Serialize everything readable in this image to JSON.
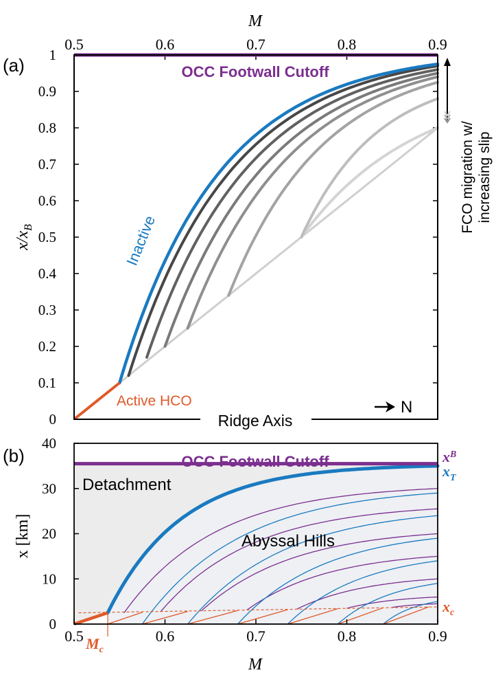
{
  "colors": {
    "purple": "#7b2f8f",
    "blue": "#1a7ac0",
    "orange": "#e05a2a",
    "frame": "#000000",
    "detachment_fill": "#ececec",
    "hills_fill": "#eef0f4"
  },
  "panel_labels": {
    "a": "(a)",
    "b": "(b)"
  },
  "chart_data": [
    {
      "type": "line",
      "panel": "a",
      "xlabel": "M",
      "ylabel": "x/x_B",
      "ylabel_main": "x/x",
      "ylabel_sub": "B",
      "xlim": [
        0.5,
        0.9
      ],
      "ylim": [
        0,
        1
      ],
      "xticks": [
        "0.5",
        "0.6",
        "0.7",
        "0.8",
        "0.9"
      ],
      "yticks": [
        "0",
        "0.1",
        "0.2",
        "0.3",
        "0.4",
        "0.5",
        "0.6",
        "0.7",
        "0.8",
        "0.9",
        "1"
      ],
      "grid": false,
      "x_axis_position": "top",
      "annotations": {
        "footwall": "OCC Footwall Cutoff",
        "inactive": "Inactive",
        "active": "Active HCO",
        "ridge": "Ridge Axis",
        "north": "N",
        "fco_line1": "FCO migration w/",
        "fco_line2": "increasing slip"
      },
      "footwall_cutoff": {
        "x": [
          0.5,
          0.9
        ],
        "y": [
          1,
          1
        ]
      },
      "active_hco": {
        "x": [
          0.5,
          0.55
        ],
        "y": [
          0.0,
          0.1
        ]
      },
      "ridge_diagonal": {
        "x": [
          0.55,
          0.9
        ],
        "y": [
          0.1,
          0.8
        ]
      },
      "curves": [
        {
          "start": [
            0.55,
            0.1
          ],
          "end": [
            0.9,
            0.975
          ],
          "k": 3.2,
          "style": "inactive"
        },
        {
          "start": [
            0.56,
            0.12
          ],
          "end": [
            0.9,
            0.97
          ],
          "k": 3.0,
          "gray": 0.28
        },
        {
          "start": [
            0.58,
            0.17
          ],
          "end": [
            0.9,
            0.96
          ],
          "k": 2.8,
          "gray": 0.38
        },
        {
          "start": [
            0.6,
            0.2
          ],
          "end": [
            0.9,
            0.95
          ],
          "k": 2.6,
          "gray": 0.48
        },
        {
          "start": [
            0.625,
            0.25
          ],
          "end": [
            0.9,
            0.94
          ],
          "k": 2.4,
          "gray": 0.56
        },
        {
          "start": [
            0.67,
            0.34
          ],
          "end": [
            0.9,
            0.925
          ],
          "k": 2.2,
          "gray": 0.64
        },
        {
          "start": [
            0.75,
            0.5
          ],
          "end": [
            0.9,
            0.88
          ],
          "k": 1.8,
          "gray": 0.74
        },
        {
          "start": [
            0.75,
            0.5
          ],
          "end": [
            0.9,
            0.8
          ],
          "k": 1.2,
          "gray": 0.83
        }
      ]
    },
    {
      "type": "line",
      "panel": "b",
      "xlabel": "M",
      "ylabel": "x [km]",
      "xlim": [
        0.5,
        0.9
      ],
      "ylim": [
        0,
        40
      ],
      "xticks": [
        "0.5",
        "0.6",
        "0.7",
        "0.8",
        "0.9"
      ],
      "yticks": [
        "0",
        "10",
        "20",
        "30",
        "40"
      ],
      "grid": false,
      "annotations": {
        "footwall": "OCC Footwall Cutoff",
        "detachment": "Detachment",
        "abyssal": "Abyssal Hills",
        "mc_main": "M",
        "mc_sub": "c",
        "xb_main": "x",
        "xb_sub": "B",
        "xt_main": "x",
        "xt_sub": "T",
        "xc_main": "x",
        "xc_sub": "c"
      },
      "mc_value": 0.537,
      "footwall_cutoff": {
        "x": [
          0.5,
          0.9
        ],
        "y": [
          35.5,
          35.5
        ]
      },
      "detachment_curve": {
        "start": [
          0.537,
          2.5
        ],
        "end": [
          0.9,
          35
        ],
        "k": 4.5
      },
      "active_segment": {
        "x": [
          0.5,
          0.537
        ],
        "y": [
          0,
          2.5
        ]
      },
      "xc_dashed": {
        "x": [
          0.505,
          0.9
        ],
        "y": [
          2.5,
          3.8
        ]
      },
      "hill_purple": [
        {
          "start": [
            0.555,
            2.5
          ],
          "end": [
            0.9,
            30
          ],
          "k": 3.4
        },
        {
          "start": [
            0.595,
            2.7
          ],
          "end": [
            0.9,
            25.5
          ],
          "k": 3.0
        },
        {
          "start": [
            0.64,
            2.9
          ],
          "end": [
            0.9,
            20
          ],
          "k": 2.6
        },
        {
          "start": [
            0.69,
            3.1
          ],
          "end": [
            0.9,
            15
          ],
          "k": 2.3
        },
        {
          "start": [
            0.745,
            3.3
          ],
          "end": [
            0.9,
            10
          ],
          "k": 2.0
        },
        {
          "start": [
            0.8,
            3.5
          ],
          "end": [
            0.9,
            6
          ],
          "k": 1.7
        },
        {
          "start": [
            0.85,
            3.7
          ],
          "end": [
            0.9,
            4.5
          ],
          "k": 1.5
        }
      ],
      "hill_blue": [
        {
          "start": [
            0.575,
            0
          ],
          "end": [
            0.9,
            29
          ],
          "k": 3.0
        },
        {
          "start": [
            0.625,
            0
          ],
          "end": [
            0.9,
            24
          ],
          "k": 2.6
        },
        {
          "start": [
            0.68,
            0
          ],
          "end": [
            0.9,
            19
          ],
          "k": 2.3
        },
        {
          "start": [
            0.735,
            0
          ],
          "end": [
            0.9,
            14
          ],
          "k": 2.0
        },
        {
          "start": [
            0.79,
            0
          ],
          "end": [
            0.9,
            9
          ],
          "k": 1.8
        },
        {
          "start": [
            0.84,
            0
          ],
          "end": [
            0.9,
            5
          ],
          "k": 1.6
        }
      ],
      "hill_orange": [
        {
          "x": [
            0.537,
            0.575
          ],
          "y": [
            0,
            2.6
          ]
        },
        {
          "x": [
            0.575,
            0.625
          ],
          "y": [
            0,
            2.8
          ]
        },
        {
          "x": [
            0.625,
            0.68
          ],
          "y": [
            0,
            3.0
          ]
        },
        {
          "x": [
            0.68,
            0.735
          ],
          "y": [
            0,
            3.2
          ]
        },
        {
          "x": [
            0.735,
            0.79
          ],
          "y": [
            0,
            3.4
          ]
        },
        {
          "x": [
            0.79,
            0.84
          ],
          "y": [
            0,
            3.6
          ]
        },
        {
          "x": [
            0.84,
            0.89
          ],
          "y": [
            0,
            3.8
          ]
        }
      ]
    }
  ]
}
